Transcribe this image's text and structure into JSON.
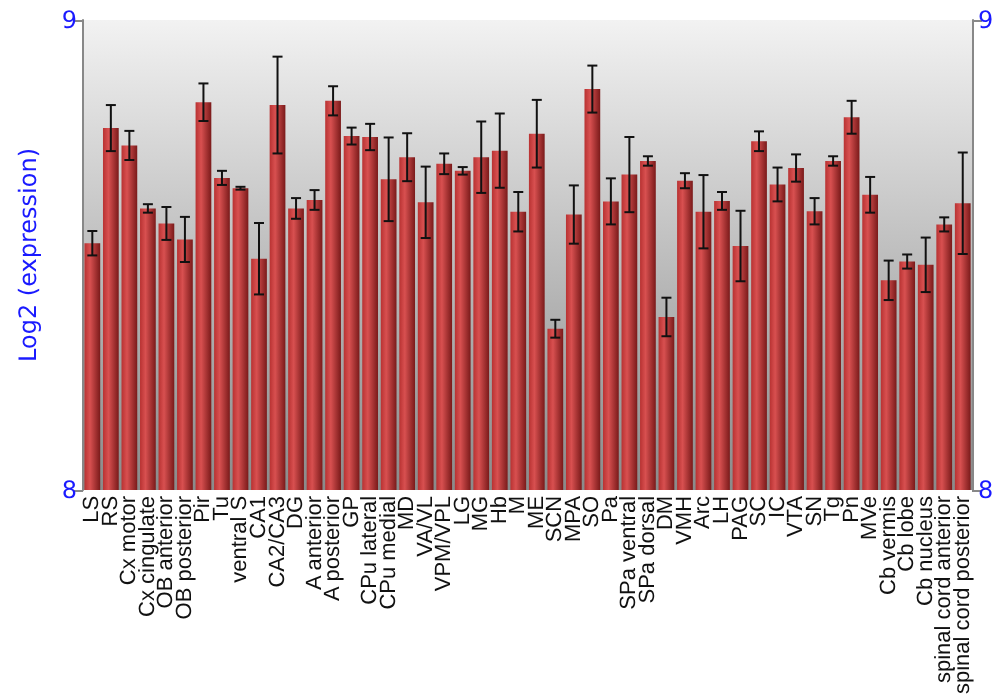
{
  "chart_data": {
    "type": "bar",
    "ylabel": "Log2 (expression)",
    "categories": [
      "LS",
      "RS",
      "Cx motor",
      "Cx cingulate",
      "OB anterior",
      "OB posterior",
      "Pir",
      "Tu",
      "ventral S",
      "CA1",
      "CA2/CA3",
      "DG",
      "A anterior",
      "A posterior",
      "GP",
      "CPu lateral",
      "CPu medial",
      "MD",
      "VA/VL",
      "VPM/VPL",
      "LG",
      "MG",
      "Hb",
      "M",
      "ME",
      "SCN",
      "MPA",
      "SO",
      "Pa",
      "SPa ventral",
      "SPa dorsal",
      "DM",
      "VMH",
      "Arc",
      "LH",
      "PAG",
      "SC",
      "IC",
      "VTA",
      "SN",
      "Tg",
      "Pn",
      "MVe",
      "Cb vermis",
      "Cb lobe",
      "Cb nucleus",
      "spinal cord anterior",
      "spinal cord posterior"
    ],
    "values": [
      8.525,
      8.77,
      8.733,
      8.599,
      8.567,
      8.533,
      8.825,
      8.664,
      8.642,
      8.492,
      8.819,
      8.599,
      8.617,
      8.828,
      8.753,
      8.751,
      8.661,
      8.708,
      8.612,
      8.694,
      8.679,
      8.708,
      8.722,
      8.592,
      8.758,
      8.343,
      8.586,
      8.853,
      8.614,
      8.671,
      8.7,
      8.368,
      8.658,
      8.592,
      8.615,
      8.519,
      8.742,
      8.65,
      8.685,
      8.593,
      8.7,
      8.793,
      8.628,
      8.446,
      8.486,
      8.479,
      8.565,
      8.61
    ],
    "errors": [
      0.026,
      0.049,
      0.031,
      0.009,
      0.035,
      0.048,
      0.04,
      0.015,
      0.003,
      0.076,
      0.103,
      0.022,
      0.021,
      0.031,
      0.018,
      0.028,
      0.089,
      0.051,
      0.076,
      0.022,
      0.008,
      0.076,
      0.079,
      0.042,
      0.072,
      0.019,
      0.062,
      0.05,
      0.049,
      0.08,
      0.01,
      0.041,
      0.016,
      0.078,
      0.019,
      0.075,
      0.021,
      0.036,
      0.029,
      0.028,
      0.01,
      0.035,
      0.038,
      0.042,
      0.015,
      0.058,
      0.015,
      0.108
    ],
    "color": "#b83232",
    "ylim": [
      8,
      9
    ],
    "yticks": [
      8,
      9
    ],
    "y2lim": [
      8,
      9
    ],
    "y2ticks": [
      8,
      9
    ],
    "grid": false
  }
}
